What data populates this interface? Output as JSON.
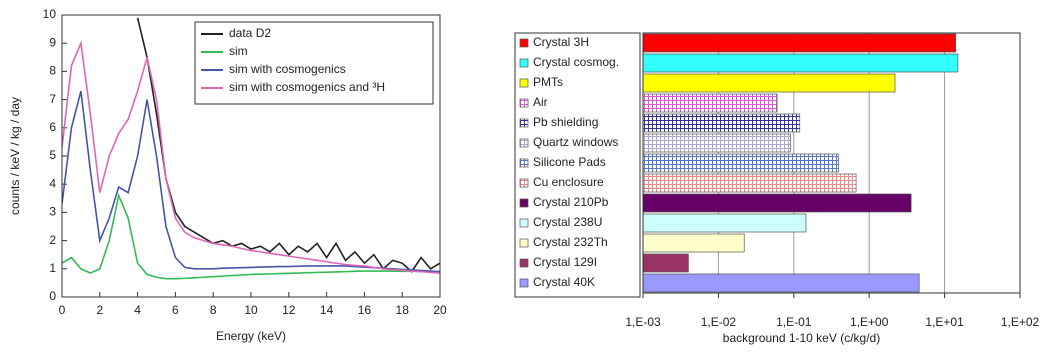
{
  "chart_data": [
    {
      "type": "line",
      "xlabel": "Energy (keV)",
      "ylabel": "counts / keV / kg / day",
      "x": [
        0,
        0.5,
        1,
        1.5,
        2,
        2.5,
        3,
        3.5,
        4,
        4.5,
        5,
        5.5,
        6,
        6.5,
        7,
        7.5,
        8,
        8.5,
        9,
        9.5,
        10,
        10.5,
        11,
        11.5,
        12,
        12.5,
        13,
        13.5,
        14,
        14.5,
        15,
        15.5,
        16,
        16.5,
        17,
        17.5,
        18,
        18.5,
        19,
        19.5,
        20
      ],
      "xlim": [
        0,
        20
      ],
      "xticks": [
        0,
        2,
        4,
        6,
        8,
        10,
        12,
        14,
        16,
        18,
        20
      ],
      "ylim": [
        0,
        10
      ],
      "yticks": [
        0,
        1,
        2,
        3,
        4,
        5,
        6,
        7,
        8,
        9,
        10
      ],
      "legend": "upper right",
      "series": [
        {
          "name": "data D2",
          "color": "#222222",
          "values": [
            null,
            null,
            null,
            null,
            null,
            null,
            null,
            null,
            9.9,
            8.5,
            6.5,
            4.2,
            3.0,
            2.5,
            2.3,
            2.1,
            1.9,
            2.0,
            1.8,
            1.9,
            1.7,
            1.8,
            1.6,
            1.9,
            1.5,
            1.8,
            1.6,
            1.9,
            1.4,
            1.9,
            1.3,
            1.6,
            1.2,
            1.5,
            1.0,
            1.3,
            1.2,
            0.9,
            1.4,
            1.0,
            1.2
          ]
        },
        {
          "name": "sim",
          "color": "#33bb55",
          "values": [
            1.2,
            1.4,
            1.0,
            0.85,
            1.0,
            2.0,
            3.6,
            2.8,
            1.2,
            0.8,
            0.7,
            0.65,
            0.65,
            0.66,
            0.68,
            0.7,
            0.72,
            0.74,
            0.76,
            0.78,
            0.8,
            0.81,
            0.82,
            0.83,
            0.84,
            0.85,
            0.86,
            0.87,
            0.88,
            0.89,
            0.9,
            0.91,
            0.92,
            0.92,
            0.92,
            0.92,
            0.91,
            0.91,
            0.9,
            0.9,
            0.9
          ]
        },
        {
          "name": "sim with cosmogenics",
          "color": "#4455aa",
          "values": [
            3.3,
            6.0,
            7.3,
            4.5,
            2.0,
            2.8,
            3.9,
            3.7,
            5.0,
            7.0,
            5.0,
            2.5,
            1.4,
            1.05,
            1.0,
            1.0,
            1.0,
            1.02,
            1.03,
            1.04,
            1.05,
            1.06,
            1.07,
            1.08,
            1.08,
            1.09,
            1.1,
            1.1,
            1.1,
            1.1,
            1.1,
            1.08,
            1.06,
            1.04,
            1.02,
            1.0,
            0.98,
            0.96,
            0.94,
            0.92,
            0.9
          ]
        },
        {
          "name": "sim with cosmogenics and ³H",
          "color": "#dd66bb",
          "values": [
            5.3,
            8.2,
            9.0,
            6.5,
            3.7,
            5.0,
            5.8,
            6.3,
            7.3,
            8.5,
            7.0,
            4.2,
            2.8,
            2.3,
            2.1,
            2.0,
            1.9,
            1.85,
            1.8,
            1.72,
            1.65,
            1.6,
            1.55,
            1.5,
            1.45,
            1.4,
            1.35,
            1.3,
            1.25,
            1.2,
            1.15,
            1.12,
            1.1,
            1.05,
            1.0,
            0.97,
            0.95,
            0.92,
            0.9,
            0.87,
            0.85
          ]
        }
      ]
    },
    {
      "type": "hbar",
      "log_x": true,
      "grid": true,
      "xlabel": "background 1-10 keV (c/kg/d)",
      "categories": [
        "Crystal 3H",
        "Crystal cosmog.",
        "PMTs",
        "Air",
        "Pb shielding",
        "Quartz windows",
        "Silicone Pads",
        "Cu enclosure",
        "Crystal 210Pb",
        "Crystal 238U",
        "Crystal 232Th",
        "Crystal 129I",
        "Crystal 40K"
      ],
      "values": [
        14,
        15,
        2.2,
        0.06,
        0.12,
        0.09,
        0.39,
        0.67,
        3.6,
        0.145,
        0.022,
        0.004,
        4.6
      ],
      "colors": [
        "#ff0000",
        "#33ffff",
        "#ffff00",
        "#dd55dd",
        "#333399",
        "#aaaacc",
        "#5577cc",
        "#ee8888",
        "#660066",
        "#ccffff",
        "#ffffcc",
        "#993366",
        "#9999ff"
      ],
      "hatch": [
        false,
        false,
        false,
        true,
        true,
        true,
        true,
        true,
        false,
        false,
        false,
        false,
        false
      ],
      "xlim": [
        0.001,
        100
      ],
      "xticks": [
        {
          "value": 0.001,
          "label": "1,E-03"
        },
        {
          "value": 0.01,
          "label": "1,E-02"
        },
        {
          "value": 0.1,
          "label": "1,E-01"
        },
        {
          "value": 1,
          "label": "1,E+00"
        },
        {
          "value": 10,
          "label": "1,E+01"
        },
        {
          "value": 100,
          "label": "1,E+02"
        }
      ]
    }
  ]
}
